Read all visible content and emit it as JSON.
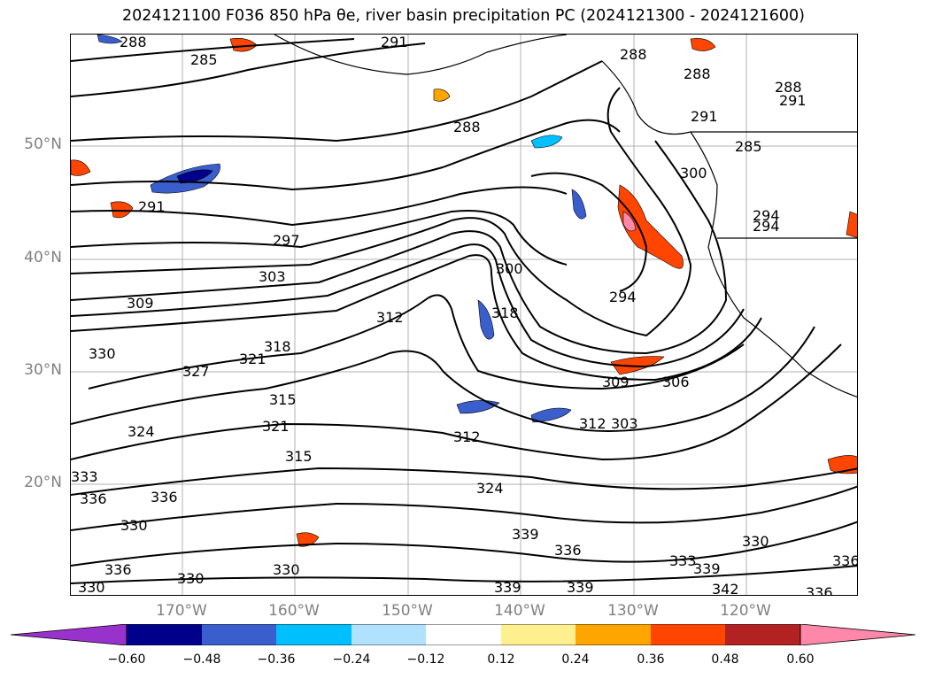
{
  "title": "2024121100 F036 850 hPa θe, river basin precipitation PC (2024121300 - 2024121600)",
  "lat_labels": [
    "50°N",
    "40°N",
    "30°N",
    "20°N"
  ],
  "lon_labels": [
    "170°W",
    "160°W",
    "150°W",
    "140°W",
    "130°W",
    "120°W"
  ],
  "contour_labels": [
    "288",
    "291",
    "285",
    "291",
    "288",
    "288",
    "291",
    "285",
    "288",
    "300",
    "294",
    "288",
    "291",
    "297",
    "303",
    "300",
    "309",
    "312",
    "318",
    "294",
    "330",
    "327",
    "321",
    "318",
    "315",
    "309",
    "306",
    "324",
    "321",
    "315",
    "312",
    "312",
    "303",
    "333",
    "336",
    "330",
    "324",
    "339",
    "336",
    "336",
    "330",
    "330",
    "333",
    "339",
    "342",
    "339",
    "339",
    "336",
    "330",
    "336",
    "330",
    "336",
    "294"
  ],
  "colorbar": {
    "ticks": [
      "−0.60",
      "−0.48",
      "−0.36",
      "−0.24",
      "−0.12",
      "0.12",
      "0.24",
      "0.36",
      "0.48",
      "0.60"
    ],
    "colors": [
      "#9932cc",
      "#00008b",
      "#3a5fcd",
      "#00bfff",
      "#b0e2ff",
      "#ffffff",
      "#fff08f",
      "#ffa500",
      "#ff4500",
      "#b22222",
      "#ff88aa"
    ]
  }
}
